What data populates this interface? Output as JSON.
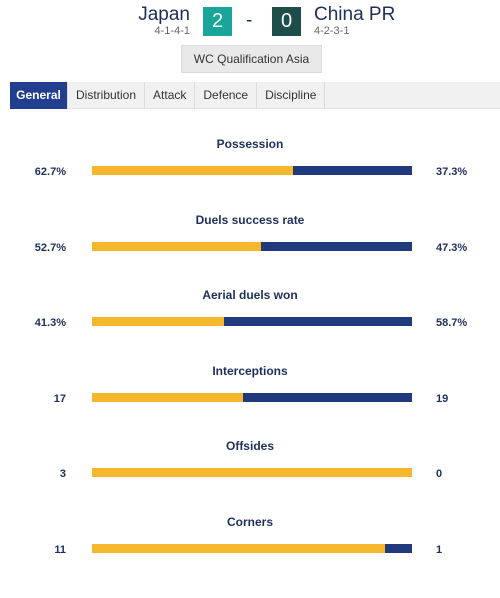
{
  "match": {
    "home": {
      "name": "Japan",
      "formation": "4-1-4-1",
      "score": "2"
    },
    "away": {
      "name": "China PR",
      "formation": "4-2-3-1",
      "score": "0"
    },
    "separator": "-",
    "competition": "WC Qualification Asia"
  },
  "tabs": [
    {
      "label": "General",
      "active": true
    },
    {
      "label": "Distribution",
      "active": false
    },
    {
      "label": "Attack",
      "active": false
    },
    {
      "label": "Defence",
      "active": false
    },
    {
      "label": "Discipline",
      "active": false
    }
  ],
  "colors": {
    "home_bar": "#f5b82d",
    "away_bar": "#213a7d",
    "active_tab": "#213f8e",
    "home_score_bg": "#1aa59a",
    "away_score_bg": "#1e4e4b"
  },
  "stats": [
    {
      "title": "Possession",
      "home": "62.7%",
      "away": "37.3%",
      "home_share": 0.627
    },
    {
      "title": "Duels success rate",
      "home": "52.7%",
      "away": "47.3%",
      "home_share": 0.527
    },
    {
      "title": "Aerial duels won",
      "home": "41.3%",
      "away": "58.7%",
      "home_share": 0.413
    },
    {
      "title": "Interceptions",
      "home": "17",
      "away": "19",
      "home_share": 0.4722
    },
    {
      "title": "Offsides",
      "home": "3",
      "away": "0",
      "home_share": 1.0
    },
    {
      "title": "Corners",
      "home": "11",
      "away": "1",
      "home_share": 0.9167
    }
  ]
}
